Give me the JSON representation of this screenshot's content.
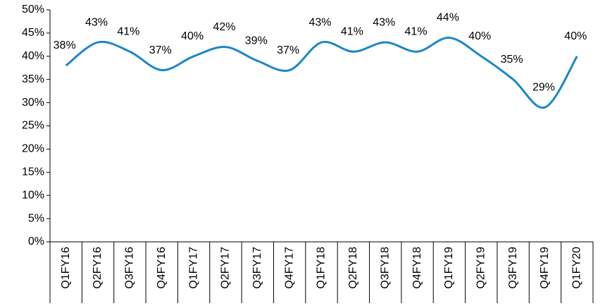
{
  "chart_data": {
    "type": "line",
    "categories": [
      "Q1FY16",
      "Q2FY16",
      "Q3FY16",
      "Q4FY16",
      "Q1FY17",
      "Q2FY17",
      "Q3FY17",
      "Q4FY17",
      "Q1FY18",
      "Q2FY18",
      "Q3FY18",
      "Q4FY18",
      "Q1FY19",
      "Q2FY19",
      "Q3FY19",
      "Q4FY19",
      "Q1FY20"
    ],
    "values": [
      38,
      43,
      41,
      37,
      40,
      42,
      39,
      37,
      43,
      41,
      43,
      41,
      44,
      40,
      35,
      29,
      40
    ],
    "value_labels": [
      "38%",
      "43%",
      "41%",
      "37%",
      "40%",
      "42%",
      "39%",
      "37%",
      "43%",
      "41%",
      "43%",
      "41%",
      "44%",
      "40%",
      "35%",
      "29%",
      "40%"
    ],
    "color": "#1a87c9",
    "smooth": true,
    "ylim": [
      0,
      50
    ],
    "yticks": [
      {
        "value": 0,
        "label": "0%"
      },
      {
        "value": 5,
        "label": "5%"
      },
      {
        "value": 10,
        "label": "10%"
      },
      {
        "value": 15,
        "label": "15%"
      },
      {
        "value": 20,
        "label": "20%"
      },
      {
        "value": 25,
        "label": "25%"
      },
      {
        "value": 30,
        "label": "30%"
      },
      {
        "value": 35,
        "label": "35%"
      },
      {
        "value": 40,
        "label": "40%"
      },
      {
        "value": 45,
        "label": "45%"
      },
      {
        "value": 50,
        "label": "50%"
      }
    ],
    "grid": false
  }
}
